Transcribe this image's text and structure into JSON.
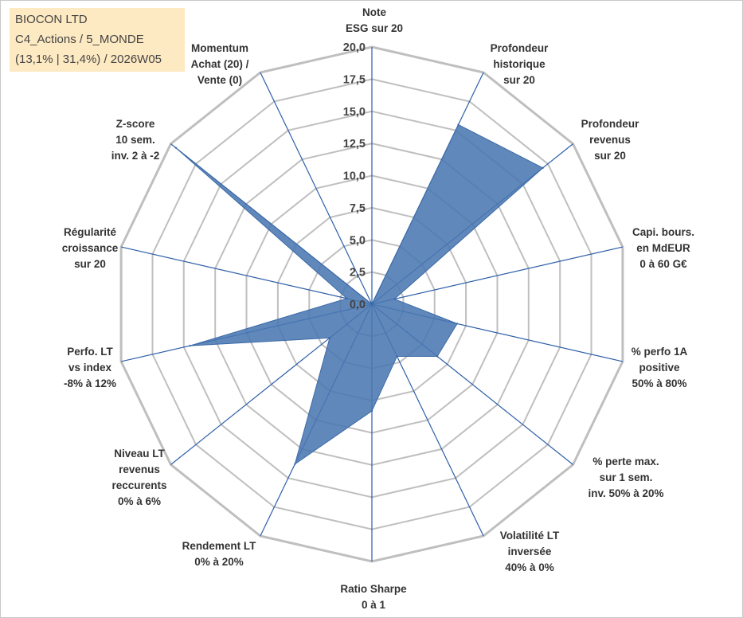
{
  "info": {
    "company": "BIOCON LTD",
    "portfolio": "C4_Actions / 5_MONDE",
    "stats": "(13,1% | 31,4%) / 2026W05"
  },
  "colors": {
    "grid": "#bfbfbf",
    "spoke": "#2e5fa8",
    "fill": "#4a78b2",
    "fill_stroke": "#3c6aa6"
  },
  "chart_data": {
    "type": "radar",
    "title": "",
    "range": [
      0,
      20
    ],
    "tick_step": 2.5,
    "tick_labels": [
      "0,0",
      "2,5",
      "5,0",
      "7,5",
      "10,0",
      "12,5",
      "15,0",
      "17,5",
      "20,0"
    ],
    "axes": [
      {
        "label_lines": [
          "Note",
          "ESG sur 20"
        ],
        "value": 0
      },
      {
        "label_lines": [
          "Profondeur",
          "historique",
          "sur 20"
        ],
        "value": 15.5
      },
      {
        "label_lines": [
          "Profondeur",
          "revenus",
          "sur 20"
        ],
        "value": 17.0
      },
      {
        "label_lines": [
          "Capi. bours.",
          "en MdEUR",
          "0 à 60 G€"
        ],
        "value": 1.8
      },
      {
        "label_lines": [
          "% perfo 1A",
          "positive",
          "50% à 80%"
        ],
        "value": 6.8
      },
      {
        "label_lines": [
          "% perte max.",
          "sur 1 sem.",
          "inv. 50% à 20%"
        ],
        "value": 6.5
      },
      {
        "label_lines": [
          "Volatilité LT",
          "inversée",
          "40% à 0%"
        ],
        "value": 4.5
      },
      {
        "label_lines": [
          "Ratio Sharpe",
          "0 à 1"
        ],
        "value": 8.3
      },
      {
        "label_lines": [
          "Rendement LT",
          "0% à 20%"
        ],
        "value": 13.8
      },
      {
        "label_lines": [
          "Niveau LT",
          "revenus",
          "reccurents",
          "0% à 6%"
        ],
        "value": 4.2
      },
      {
        "label_lines": [
          "Perfo. LT",
          "vs index",
          "-8% à 12%"
        ],
        "value": 14.5
      },
      {
        "label_lines": [
          "Régularité",
          "croissance",
          "sur 20"
        ],
        "value": 2.0
      },
      {
        "label_lines": [
          "Z-score",
          "10 sem.",
          "inv. 2 à -2"
        ],
        "value": 19.5
      },
      {
        "label_lines": [
          "Momentum",
          "Achat (20) /",
          "Vente (0)"
        ],
        "value": 0
      }
    ]
  }
}
